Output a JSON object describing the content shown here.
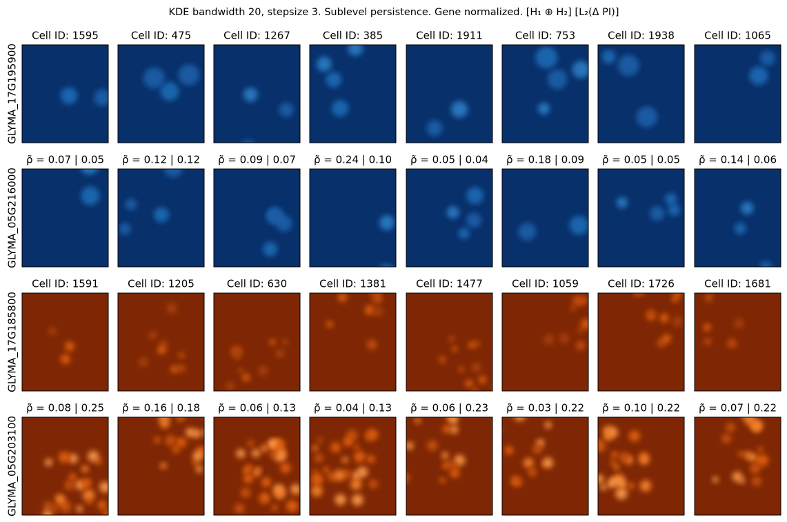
{
  "title": "KDE bandwidth 20, stepsize 3. Sublevel persistence. Gene normalized. [H₁ ⊕ H₂] [L₂(Δ PI)]",
  "rows": [
    {
      "label": "GLYMA_17G195900",
      "panels": [
        "Cell ID: 1595",
        "Cell ID: 475",
        "Cell ID: 1267",
        "Cell ID: 385",
        "Cell ID: 1911",
        "Cell ID: 753",
        "Cell ID: 1938",
        "Cell ID: 1065"
      ]
    },
    {
      "label": "GLYMA_05G216000",
      "panels": [
        "ρ̃ = 0.07 | 0.05",
        "ρ̃ = 0.12 | 0.12",
        "ρ̃ = 0.09 | 0.07",
        "ρ̃ = 0.24 | 0.10",
        "ρ̃ = 0.05 | 0.04",
        "ρ̃ = 0.18 | 0.09",
        "ρ̃ = 0.05 | 0.05",
        "ρ̃ = 0.14 | 0.06"
      ]
    },
    {
      "label": "GLYMA_17G185800",
      "panels": [
        "Cell ID: 1591",
        "Cell ID: 1205",
        "Cell ID: 630",
        "Cell ID: 1381",
        "Cell ID: 1477",
        "Cell ID: 1059",
        "Cell ID: 1726",
        "Cell ID: 1681"
      ]
    },
    {
      "label": "GLYMA_05G203100",
      "panels": [
        "ρ̃ = 0.08 | 0.25",
        "ρ̃ = 0.16 | 0.18",
        "ρ̃ = 0.06 | 0.13",
        "ρ̃ = 0.04 | 0.13",
        "ρ̃ = 0.06 | 0.23",
        "ρ̃ = 0.03 | 0.22",
        "ρ̃ = 0.10 | 0.22",
        "ρ̃ = 0.07 | 0.22"
      ]
    }
  ]
}
